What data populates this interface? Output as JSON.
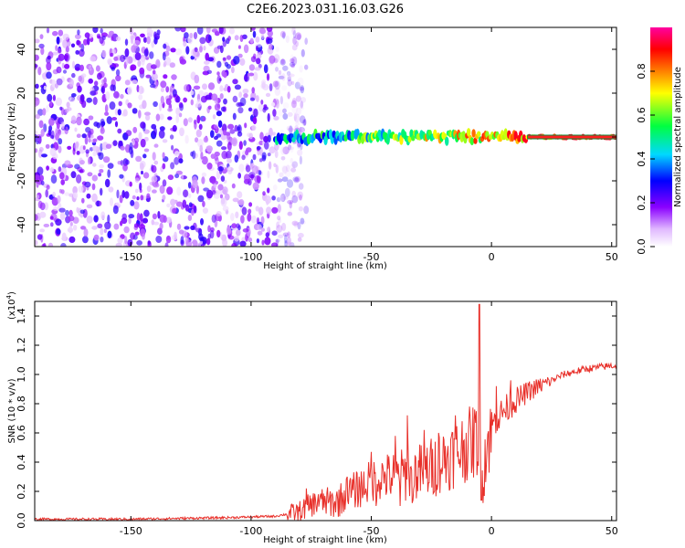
{
  "title": "C2E6.2023.031.16.03.G26",
  "chart_data": [
    {
      "type": "heatmap",
      "title": "C2E6.2023.031.16.03.G26",
      "xlabel": "Height of straight line (km)",
      "ylabel": "Frequency (Hz)",
      "xlim": [
        -190,
        52
      ],
      "ylim": [
        -50,
        50
      ],
      "x_ticks": [
        -150,
        -100,
        -50,
        0,
        50
      ],
      "y_ticks": [
        -40,
        -20,
        0,
        20,
        40
      ],
      "noise_region": {
        "x_start": -190,
        "x_end": -85,
        "freq_range": [
          -50,
          50
        ],
        "amplitude": [
          0.0,
          0.25
        ]
      },
      "signal_trace": {
        "x_start": -90,
        "x_end": 52,
        "center_freq_hz": 0,
        "spread_hz": 4,
        "amplitude_start": 0.35,
        "amplitude_end": 0.95
      },
      "colorbar": {
        "label": "Normalized spectral amplitude",
        "range": [
          0.0,
          1.0
        ],
        "ticks": [
          "0.0",
          "0.2",
          "0.4",
          "0.6",
          "0.8"
        ],
        "tick_values": [
          0.0,
          0.2,
          0.4,
          0.6,
          0.8
        ],
        "colors": [
          "#ffffff",
          "#8a00ff",
          "#0000ff",
          "#00d8ff",
          "#00ff40",
          "#ffff00",
          "#ff8000",
          "#ff0000",
          "#ff00a0"
        ]
      }
    },
    {
      "type": "line",
      "xlabel": "Height of straight line (km)",
      "ylabel": "SNR (10 * v/v)",
      "scale_label": "(x10",
      "scale_exp": "4",
      "scale_close": ")",
      "xlim": [
        -190,
        52
      ],
      "ylim": [
        0,
        1.5
      ],
      "x_ticks": [
        -150,
        -100,
        -50,
        0,
        50
      ],
      "y_ticks": [
        "0.0",
        "0.2",
        "0.4",
        "0.6",
        "0.8",
        "1.0",
        "1.2",
        "1.4"
      ],
      "y_tick_values": [
        0,
        0.2,
        0.4,
        0.6,
        0.8,
        1.0,
        1.2,
        1.4
      ],
      "color": "#e8302a",
      "x": [
        -190,
        -150,
        -110,
        -90,
        -80,
        -75,
        -70,
        -65,
        -60,
        -55,
        -50,
        -45,
        -40,
        -35,
        -30,
        -25,
        -20,
        -15,
        -10,
        -6,
        -5,
        -4,
        0,
        5,
        10,
        15,
        20,
        25,
        30,
        35,
        40,
        45,
        50,
        52
      ],
      "y": [
        0.01,
        0.01,
        0.02,
        0.03,
        0.06,
        0.11,
        0.13,
        0.12,
        0.18,
        0.22,
        0.27,
        0.3,
        0.3,
        0.32,
        0.33,
        0.36,
        0.42,
        0.46,
        0.52,
        0.55,
        1.48,
        0.35,
        0.65,
        0.75,
        0.82,
        0.88,
        0.92,
        0.96,
        1.0,
        1.02,
        1.04,
        1.05,
        1.06,
        1.06
      ],
      "spikes": [
        {
          "x": -77,
          "y": 0.22
        },
        {
          "x": -72,
          "y": 0.18
        },
        {
          "x": -60,
          "y": 0.3
        },
        {
          "x": -50,
          "y": 0.47
        },
        {
          "x": -48,
          "y": 0.1
        },
        {
          "x": -40,
          "y": 0.58
        },
        {
          "x": -38,
          "y": 0.1
        },
        {
          "x": -35,
          "y": 0.72
        },
        {
          "x": -33,
          "y": 0.12
        },
        {
          "x": -28,
          "y": 0.62
        },
        {
          "x": -22,
          "y": 0.6
        },
        {
          "x": -15,
          "y": 0.72
        },
        {
          "x": -7,
          "y": 0.76
        },
        {
          "x": -4,
          "y": 0.14
        },
        {
          "x": 2,
          "y": 0.92
        },
        {
          "x": 8,
          "y": 0.96
        },
        {
          "x": 12,
          "y": 0.86
        }
      ]
    }
  ]
}
